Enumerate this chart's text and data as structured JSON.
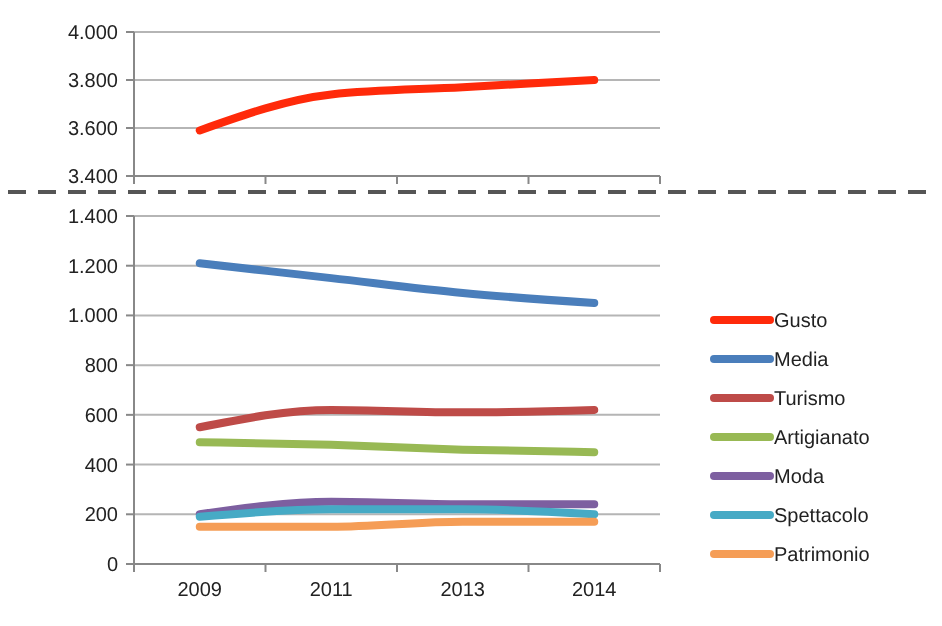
{
  "chart_data": [
    {
      "type": "line",
      "categories": [
        null,
        null,
        null,
        null
      ],
      "ylim": [
        3400,
        4000
      ],
      "yticks": [
        {
          "value": 3400,
          "label": "3.400"
        },
        {
          "value": 3600,
          "label": "3.600"
        },
        {
          "value": 3800,
          "label": "3.800"
        },
        {
          "value": 4000,
          "label": "4.000"
        }
      ],
      "grid": "y",
      "legend": "right",
      "tick_labels": "y",
      "series": [
        {
          "name": "Gusto",
          "color": "#ff2a0a",
          "values": [
            3590,
            3740,
            3770,
            3800
          ]
        }
      ]
    },
    {
      "type": "line",
      "categories": [
        "2009",
        "2011",
        "2013",
        "2014"
      ],
      "ylim": [
        0,
        1400
      ],
      "yticks": [
        0,
        200,
        400,
        600,
        800,
        {
          "value": 1000,
          "label": "1.000"
        },
        {
          "value": 1200,
          "label": "1.200"
        },
        {
          "value": 1400,
          "label": "1.400"
        }
      ],
      "grid": "y",
      "legend": "right",
      "series": [
        {
          "name": "Media",
          "color": "#4a7ebb",
          "values": [
            1210,
            1150,
            1090,
            1050
          ]
        },
        {
          "name": "Turismo",
          "color": "#be4b48",
          "values": [
            550,
            620,
            610,
            620
          ]
        },
        {
          "name": "Artigianato",
          "color": "#98b954",
          "values": [
            490,
            480,
            460,
            450
          ]
        },
        {
          "name": "Moda",
          "color": "#7d5fa0",
          "values": [
            200,
            250,
            240,
            240
          ]
        },
        {
          "name": "Spettacolo",
          "color": "#46aac5",
          "values": [
            190,
            220,
            220,
            200
          ]
        },
        {
          "name": "Patrimonio",
          "color": "#f59d56",
          "values": [
            150,
            150,
            170,
            170
          ]
        }
      ]
    }
  ]
}
